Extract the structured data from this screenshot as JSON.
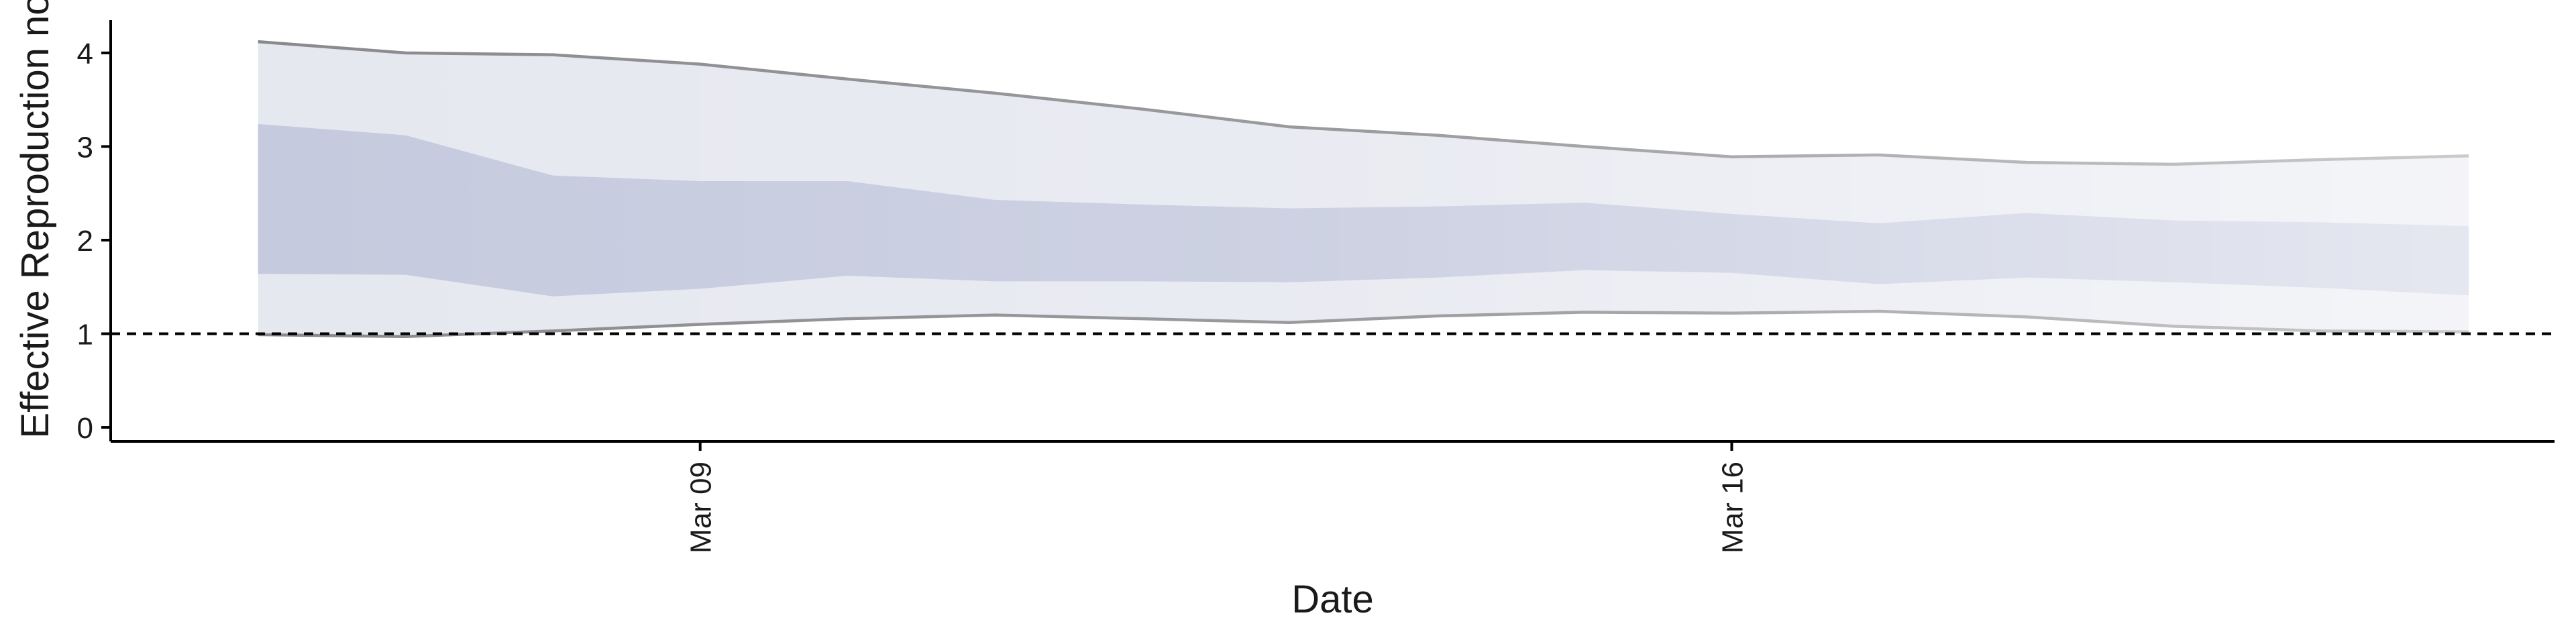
{
  "chart_data": {
    "type": "area",
    "xlabel": "Date",
    "ylabel": "Effective Reproduction no.",
    "x_type": "date",
    "x_ticks": [
      {
        "date": "2020-03-09",
        "label": "Mar 09"
      },
      {
        "date": "2020-03-16",
        "label": "Mar 16"
      }
    ],
    "y_ticks": [
      0,
      1,
      2,
      3,
      4
    ],
    "ylim": [
      -0.15,
      4.35
    ],
    "xlim": [
      "2020-03-05",
      "2020-03-21T14:00"
    ],
    "reference_line": {
      "y": 1,
      "style": "dashed"
    },
    "grid": false,
    "legend": "none",
    "series": [
      {
        "x": [
          "2020-03-06",
          "2020-03-07",
          "2020-03-08",
          "2020-03-09",
          "2020-03-10",
          "2020-03-11",
          "2020-03-12",
          "2020-03-13",
          "2020-03-14",
          "2020-03-15",
          "2020-03-16",
          "2020-03-17",
          "2020-03-18",
          "2020-03-19",
          "2020-03-20",
          "2020-03-21"
        ],
        "upper_90": [
          4.12,
          4.0,
          3.98,
          3.88,
          3.72,
          3.57,
          3.4,
          3.21,
          3.12,
          3.0,
          2.89,
          2.91,
          2.83,
          2.81,
          2.86,
          2.9
        ],
        "upper_50": [
          3.24,
          3.12,
          2.69,
          2.63,
          2.63,
          2.43,
          2.38,
          2.34,
          2.36,
          2.4,
          2.28,
          2.18,
          2.29,
          2.21,
          2.19,
          2.15
        ],
        "lower_50": [
          1.64,
          1.63,
          1.4,
          1.48,
          1.62,
          1.56,
          1.56,
          1.55,
          1.6,
          1.68,
          1.65,
          1.53,
          1.6,
          1.55,
          1.49,
          1.41
        ],
        "lower_90": [
          0.99,
          0.97,
          1.03,
          1.1,
          1.16,
          1.2,
          1.16,
          1.12,
          1.19,
          1.23,
          1.22,
          1.24,
          1.18,
          1.08,
          1.03,
          1.02
        ]
      }
    ]
  },
  "colors": {
    "outer_band": "#e6e8f0",
    "inner_band": "#c5cade",
    "bound_line": "#8a8a8e",
    "axis": "#000000",
    "reference_line": "#000000"
  }
}
